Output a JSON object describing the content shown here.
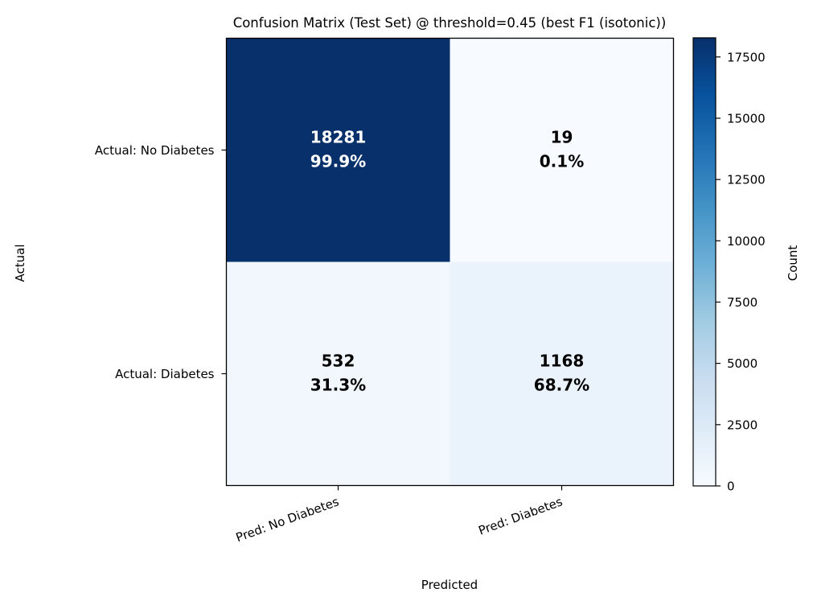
{
  "chart_data": {
    "type": "heatmap",
    "title": "Confusion Matrix (Test Set)  @ threshold=0.45 (best F1 (isotonic))",
    "xlabel": "Predicted",
    "ylabel": "Actual",
    "x_categories": [
      "Pred: No Diabetes",
      "Pred: Diabetes"
    ],
    "y_categories": [
      "Actual: No Diabetes",
      "Actual: Diabetes"
    ],
    "values": [
      [
        18281,
        19
      ],
      [
        532,
        1168
      ]
    ],
    "percent_labels": [
      [
        "99.9%",
        "0.1%"
      ],
      [
        "31.3%",
        "68.7%"
      ]
    ],
    "colorbar": {
      "label": "Count",
      "range": [
        0,
        18281
      ],
      "ticks": [
        0,
        2500,
        5000,
        7500,
        10000,
        12500,
        15000,
        17500
      ],
      "colormap": "Blues",
      "low_color": "#f7fbff",
      "high_color": "#08306b"
    },
    "annotation_color_light": "#ffffff",
    "annotation_color_dark": "#000000"
  }
}
